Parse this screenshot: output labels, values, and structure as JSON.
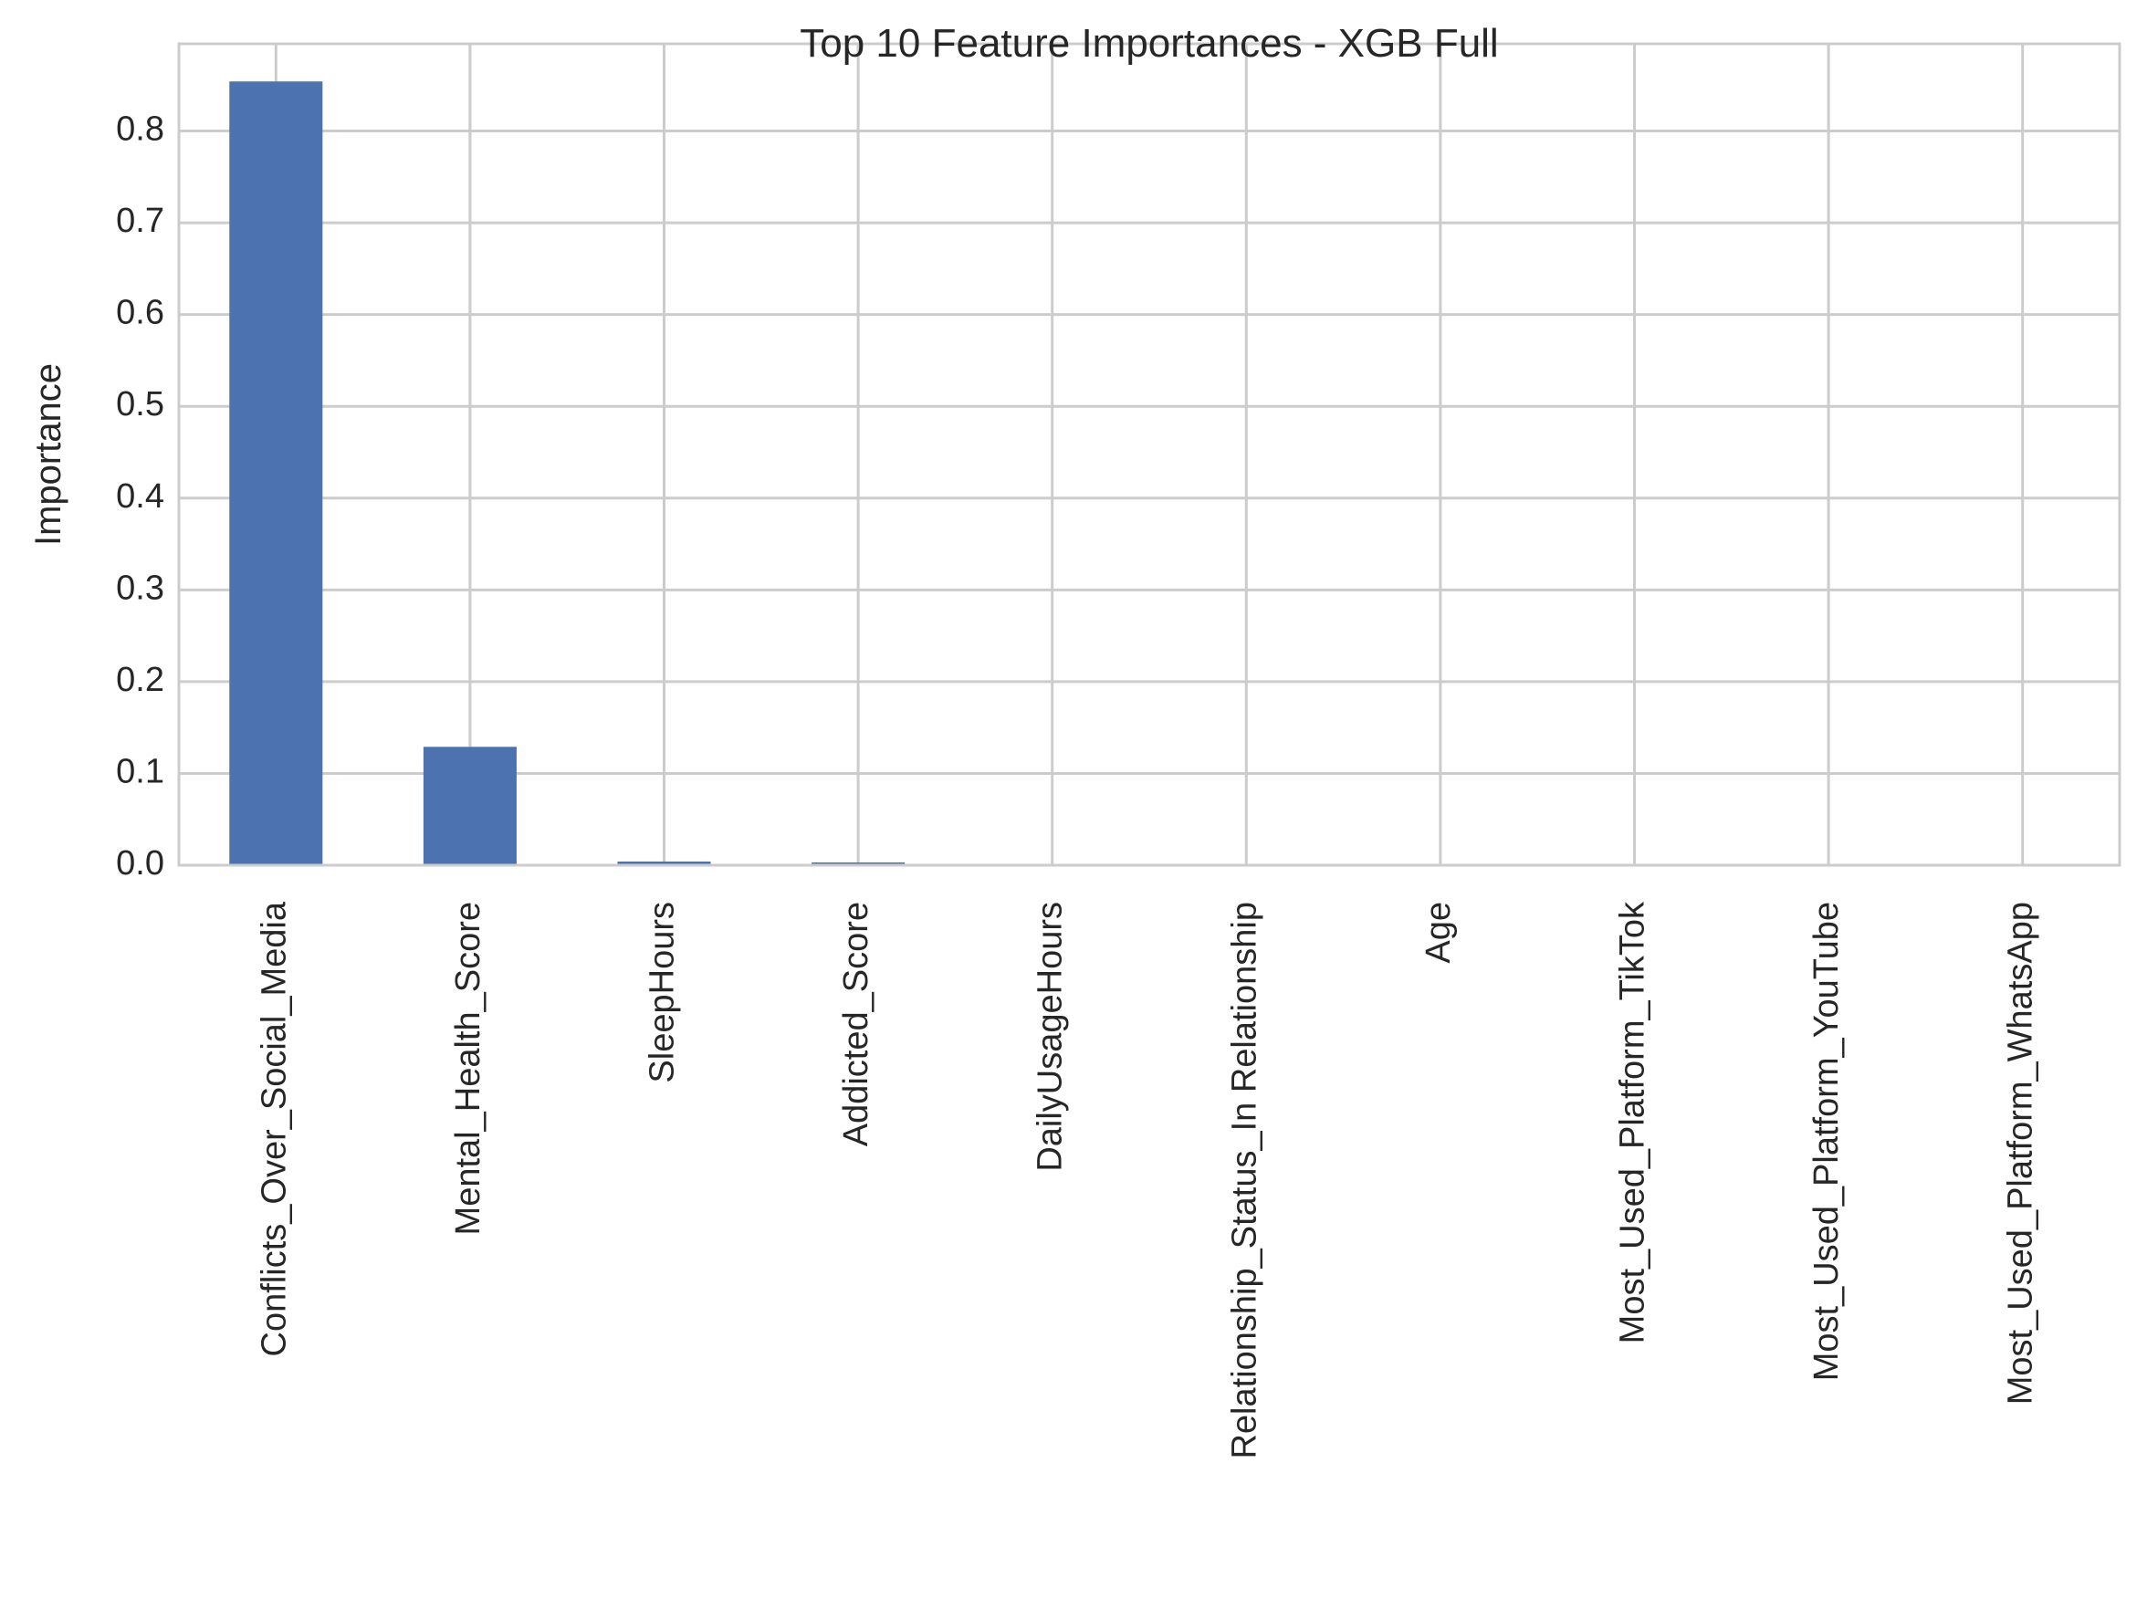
{
  "chart_data": {
    "type": "bar",
    "title": "Top 10 Feature Importances - XGB Full",
    "xlabel": "",
    "ylabel": "Importance",
    "categories": [
      "Conflicts_Over_Social_Media",
      "Mental_Health_Score",
      "SleepHours",
      "Addicted_Score",
      "DailyUsageHours",
      "Relationship_Status_In Relationship",
      "Age",
      "Most_Used_Platform_TikTok",
      "Most_Used_Platform_YouTube",
      "Most_Used_Platform_WhatsApp"
    ],
    "values": [
      0.854,
      0.129,
      0.004,
      0.003,
      0.001,
      0.0005,
      0.0004,
      0.0003,
      0.0002,
      0.0001
    ],
    "ylim": [
      0,
      0.895
    ],
    "yticks": [
      0.0,
      0.1,
      0.2,
      0.3,
      0.4,
      0.5,
      0.6,
      0.7,
      0.8
    ],
    "ytick_labels": [
      "0.0",
      "0.1",
      "0.2",
      "0.3",
      "0.4",
      "0.5",
      "0.6",
      "0.7",
      "0.8"
    ],
    "grid": true,
    "bar_color": "#4c72b0",
    "grid_color": "#cccccc"
  }
}
